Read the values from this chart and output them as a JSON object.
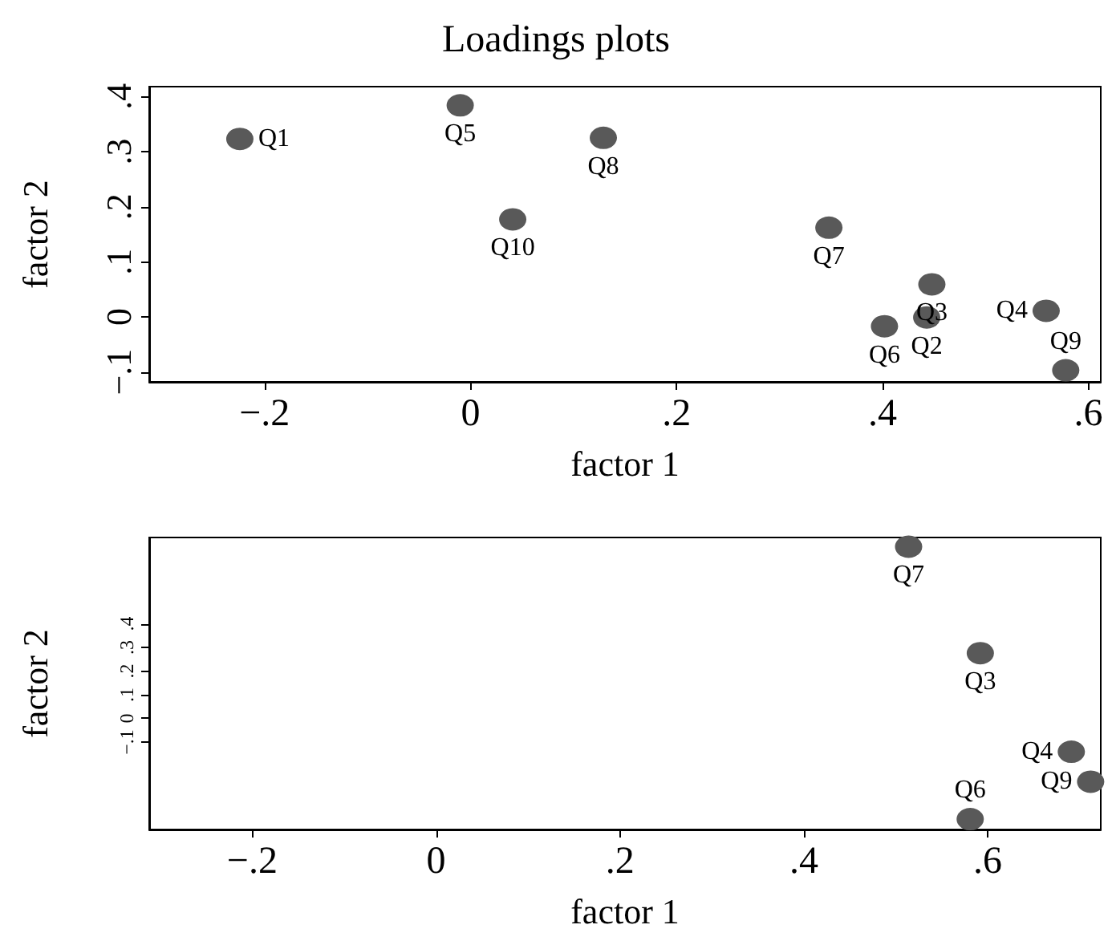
{
  "chart_data": [
    {
      "type": "scatter",
      "title": "Loadings plots",
      "xlabel": "factor 1",
      "ylabel": "factor 2",
      "marker": "circle",
      "grid": false,
      "xlim": [
        -0.312,
        0.612
      ],
      "xticks": [
        {
          "value": -0.2,
          "label": "−.2"
        },
        0,
        {
          "value": 0.2,
          "label": ".2"
        },
        {
          "value": 0.4,
          "label": ".4"
        },
        {
          "value": 0.6,
          "label": ".6"
        }
      ],
      "ylim": [
        -0.118,
        0.418
      ],
      "yticks": [
        {
          "value": -0.1,
          "label": "−.1"
        },
        0,
        {
          "value": 0.1,
          "label": ".1"
        },
        {
          "value": 0.2,
          "label": ".2"
        },
        {
          "value": 0.3,
          "label": ".3"
        },
        {
          "value": 0.4,
          "label": ".4"
        }
      ],
      "series": [
        {
          "color": "#595959",
          "x": [
            -0.224,
            -0.01,
            0.129,
            0.041,
            0.348,
            0.448,
            0.443,
            0.402,
            0.559,
            0.578
          ],
          "values": [
            0.323,
            0.384,
            0.325,
            0.177,
            0.162,
            0.059,
            -0.001,
            -0.017,
            0.011,
            -0.097
          ],
          "value_labels": [
            "Q1",
            "Q5",
            "Q8",
            "Q10",
            "Q7",
            "Q3",
            "Q2",
            "Q6",
            "Q4",
            "Q9"
          ]
        }
      ]
    },
    {
      "type": "scatter",
      "xlabel": "factor 1",
      "ylabel": "factor 2",
      "marker": "circle",
      "grid": false,
      "xlim": [
        -0.312,
        0.723
      ],
      "xticks": [
        {
          "value": -0.2,
          "label": "−.2"
        },
        0,
        {
          "value": 0.2,
          "label": ".2"
        },
        {
          "value": 0.4,
          "label": ".4"
        },
        {
          "value": 0.6,
          "label": ".6"
        }
      ],
      "ylim": [
        -0.47,
        0.765
      ],
      "yticks": [
        {
          "value": -0.1,
          "label": "−.1"
        },
        0,
        {
          "value": 0.1,
          "label": ".1"
        },
        {
          "value": 0.2,
          "label": ".2"
        },
        {
          "value": 0.3,
          "label": ".3"
        },
        {
          "value": 0.4,
          "label": ".4"
        }
      ],
      "series": [
        {
          "color": "#595959",
          "x": [
            0.514,
            0.592,
            0.691,
            0.712,
            0.581
          ],
          "values": [
            0.726,
            0.276,
            -0.141,
            -0.268,
            -0.426
          ],
          "value_labels": [
            "Q7",
            "Q3",
            "Q4",
            "Q9",
            "Q6"
          ]
        }
      ]
    }
  ]
}
